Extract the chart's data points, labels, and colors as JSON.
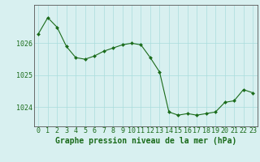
{
  "x": [
    0,
    1,
    2,
    3,
    4,
    5,
    6,
    7,
    8,
    9,
    10,
    11,
    12,
    13,
    14,
    15,
    16,
    17,
    18,
    19,
    20,
    21,
    22,
    23
  ],
  "y": [
    1026.3,
    1026.8,
    1026.5,
    1025.9,
    1025.55,
    1025.5,
    1025.6,
    1025.75,
    1025.85,
    1025.95,
    1026.0,
    1025.95,
    1025.55,
    1025.1,
    1023.85,
    1023.75,
    1023.8,
    1023.75,
    1023.8,
    1023.85,
    1024.15,
    1024.2,
    1024.55,
    1024.45
  ],
  "line_color": "#1a6b1a",
  "marker_color": "#1a6b1a",
  "bg_color": "#d8f0f0",
  "grid_color": "#aadddd",
  "tick_label_color": "#1a6b1a",
  "xlabel": "Graphe pression niveau de la mer (hPa)",
  "xlabel_color": "#1a6b1a",
  "yticks": [
    1024,
    1025,
    1026
  ],
  "ylim": [
    1023.4,
    1027.2
  ],
  "xlim": [
    -0.5,
    23.5
  ],
  "font_size": 6.0,
  "xlabel_fontsize": 7.0
}
